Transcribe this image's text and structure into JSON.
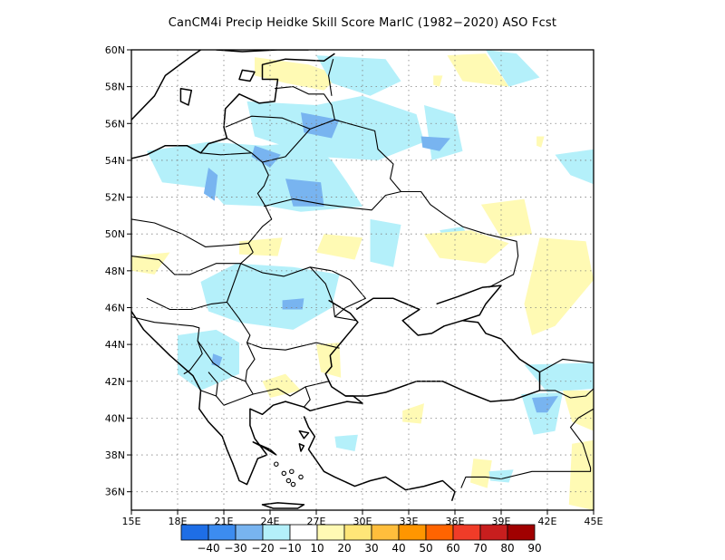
{
  "title": "CanCM4i Precip Heidke Skill Score MarIC (1982−2020) ASO Fcst",
  "map": {
    "lon_range": [
      15,
      45
    ],
    "lat_range": [
      35,
      60
    ],
    "x_ticks": [
      "15E",
      "18E",
      "21E",
      "24E",
      "27E",
      "30E",
      "33E",
      "36E",
      "39E",
      "42E",
      "45E"
    ],
    "y_ticks": [
      "36N",
      "38N",
      "40N",
      "42N",
      "44N",
      "46N",
      "48N",
      "50N",
      "52N",
      "54N",
      "56N",
      "58N",
      "60N"
    ],
    "grid": "dotted"
  },
  "colorbar": {
    "labels": [
      "−40",
      "−30",
      "−20",
      "−10",
      "10",
      "20",
      "30",
      "40",
      "50",
      "60",
      "70",
      "80",
      "90"
    ],
    "colors": [
      "#1e6ee6",
      "#3c8cf0",
      "#78b4f0",
      "#b4f0fa",
      "#ffffff",
      "#fffab4",
      "#ffe678",
      "#ffbe3c",
      "#ff9600",
      "#ff6400",
      "#f03c28",
      "#c81e1e",
      "#a00000"
    ]
  },
  "field_colors": {
    "light_blue": "#b4f0fa",
    "mid_blue": "#78b4f0",
    "dark_blue": "#3c8cf0",
    "light_yellow": "#fffab4"
  }
}
